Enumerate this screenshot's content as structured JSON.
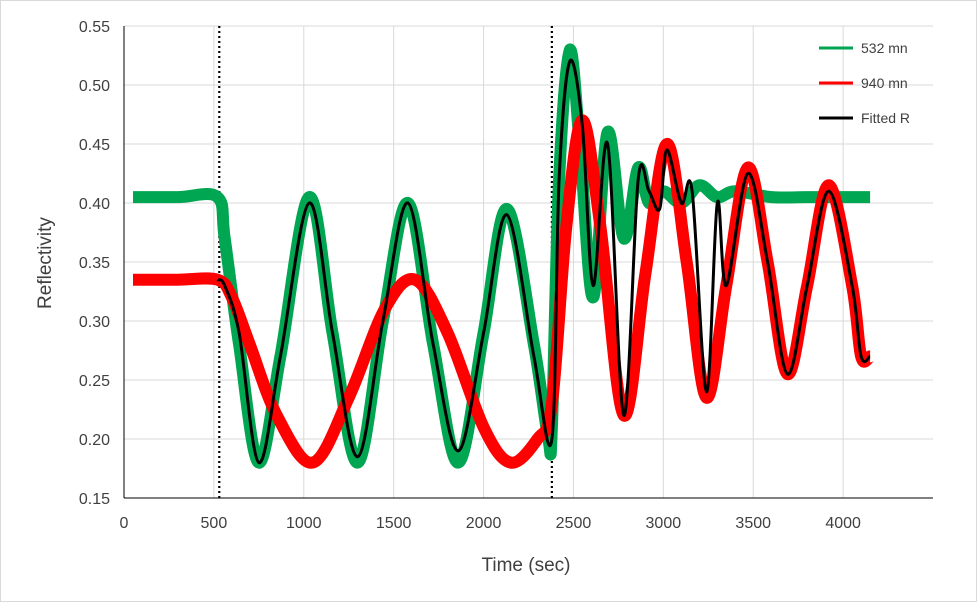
{
  "chart_data": {
    "type": "line",
    "title": "",
    "xlabel": "Time (sec)",
    "ylabel": "Reflectivity",
    "xlim": [
      0,
      4500
    ],
    "ylim": [
      0.15,
      0.55
    ],
    "x_ticks": [
      0,
      500,
      1000,
      1500,
      2000,
      2500,
      3000,
      3500,
      4000
    ],
    "y_ticks": [
      0.15,
      0.2,
      0.25,
      0.3,
      0.35,
      0.4,
      0.45,
      0.5,
      0.55
    ],
    "x_tick_labels": [
      "0",
      "500",
      "1000",
      "1500",
      "2000",
      "2500",
      "3000",
      "3500",
      "4000"
    ],
    "y_tick_labels": [
      "0.15",
      "0.20",
      "0.25",
      "0.30",
      "0.35",
      "0.40",
      "0.45",
      "0.50",
      "0.55"
    ],
    "grid": true,
    "legend_position": "top-right",
    "vertical_markers": [
      530,
      2380
    ],
    "series": [
      {
        "name": "532 mn",
        "color": "#00a651",
        "style": "thick-noisy",
        "x": [
          50,
          300,
          520,
          560,
          640,
          750,
          870,
          1030,
          1160,
          1300,
          1440,
          1580,
          1720,
          1860,
          2000,
          2130,
          2280,
          2360,
          2380,
          2420,
          2480,
          2540,
          2610,
          2690,
          2780,
          2860,
          2920,
          3000,
          3100,
          3200,
          3300,
          3400,
          3600,
          3800,
          4000,
          4150
        ],
        "y": [
          0.405,
          0.405,
          0.405,
          0.37,
          0.28,
          0.18,
          0.27,
          0.405,
          0.29,
          0.18,
          0.3,
          0.4,
          0.28,
          0.18,
          0.29,
          0.395,
          0.28,
          0.2,
          0.21,
          0.42,
          0.53,
          0.44,
          0.32,
          0.46,
          0.37,
          0.43,
          0.4,
          0.41,
          0.4,
          0.415,
          0.405,
          0.41,
          0.405,
          0.405,
          0.405,
          0.405
        ]
      },
      {
        "name": "940 mn",
        "color": "#ff0000",
        "style": "thick-noisy",
        "x": [
          50,
          300,
          520,
          600,
          700,
          850,
          1050,
          1250,
          1450,
          1620,
          1800,
          2000,
          2150,
          2300,
          2380,
          2460,
          2550,
          2650,
          2780,
          2900,
          3020,
          3130,
          3240,
          3350,
          3470,
          3580,
          3690,
          3800,
          3920,
          4050,
          4100,
          4150
        ],
        "y": [
          0.335,
          0.335,
          0.335,
          0.32,
          0.28,
          0.22,
          0.18,
          0.235,
          0.31,
          0.335,
          0.29,
          0.21,
          0.18,
          0.2,
          0.23,
          0.38,
          0.47,
          0.38,
          0.22,
          0.34,
          0.45,
          0.35,
          0.235,
          0.33,
          0.43,
          0.35,
          0.255,
          0.33,
          0.415,
          0.33,
          0.27,
          0.27
        ]
      },
      {
        "name": "Fitted R",
        "color": "#000000",
        "style": "line",
        "x": [
          520,
          560,
          640,
          750,
          870,
          1030,
          1160,
          1300,
          1440,
          1580,
          1720,
          1860,
          2000,
          2130,
          2280,
          2380,
          2420,
          2480,
          2550,
          2610,
          2690,
          2780,
          2860,
          2920,
          2980,
          3020,
          3100,
          3160,
          3240,
          3300,
          3350,
          3470,
          3580,
          3690,
          3800,
          3920,
          4050,
          4100,
          4150
        ],
        "y": [
          0.335,
          0.33,
          0.29,
          0.18,
          0.27,
          0.4,
          0.29,
          0.185,
          0.3,
          0.4,
          0.28,
          0.19,
          0.29,
          0.39,
          0.27,
          0.2,
          0.42,
          0.52,
          0.465,
          0.33,
          0.45,
          0.22,
          0.42,
          0.41,
          0.395,
          0.445,
          0.4,
          0.41,
          0.24,
          0.4,
          0.33,
          0.425,
          0.35,
          0.255,
          0.33,
          0.41,
          0.33,
          0.27,
          0.27
        ]
      }
    ]
  }
}
